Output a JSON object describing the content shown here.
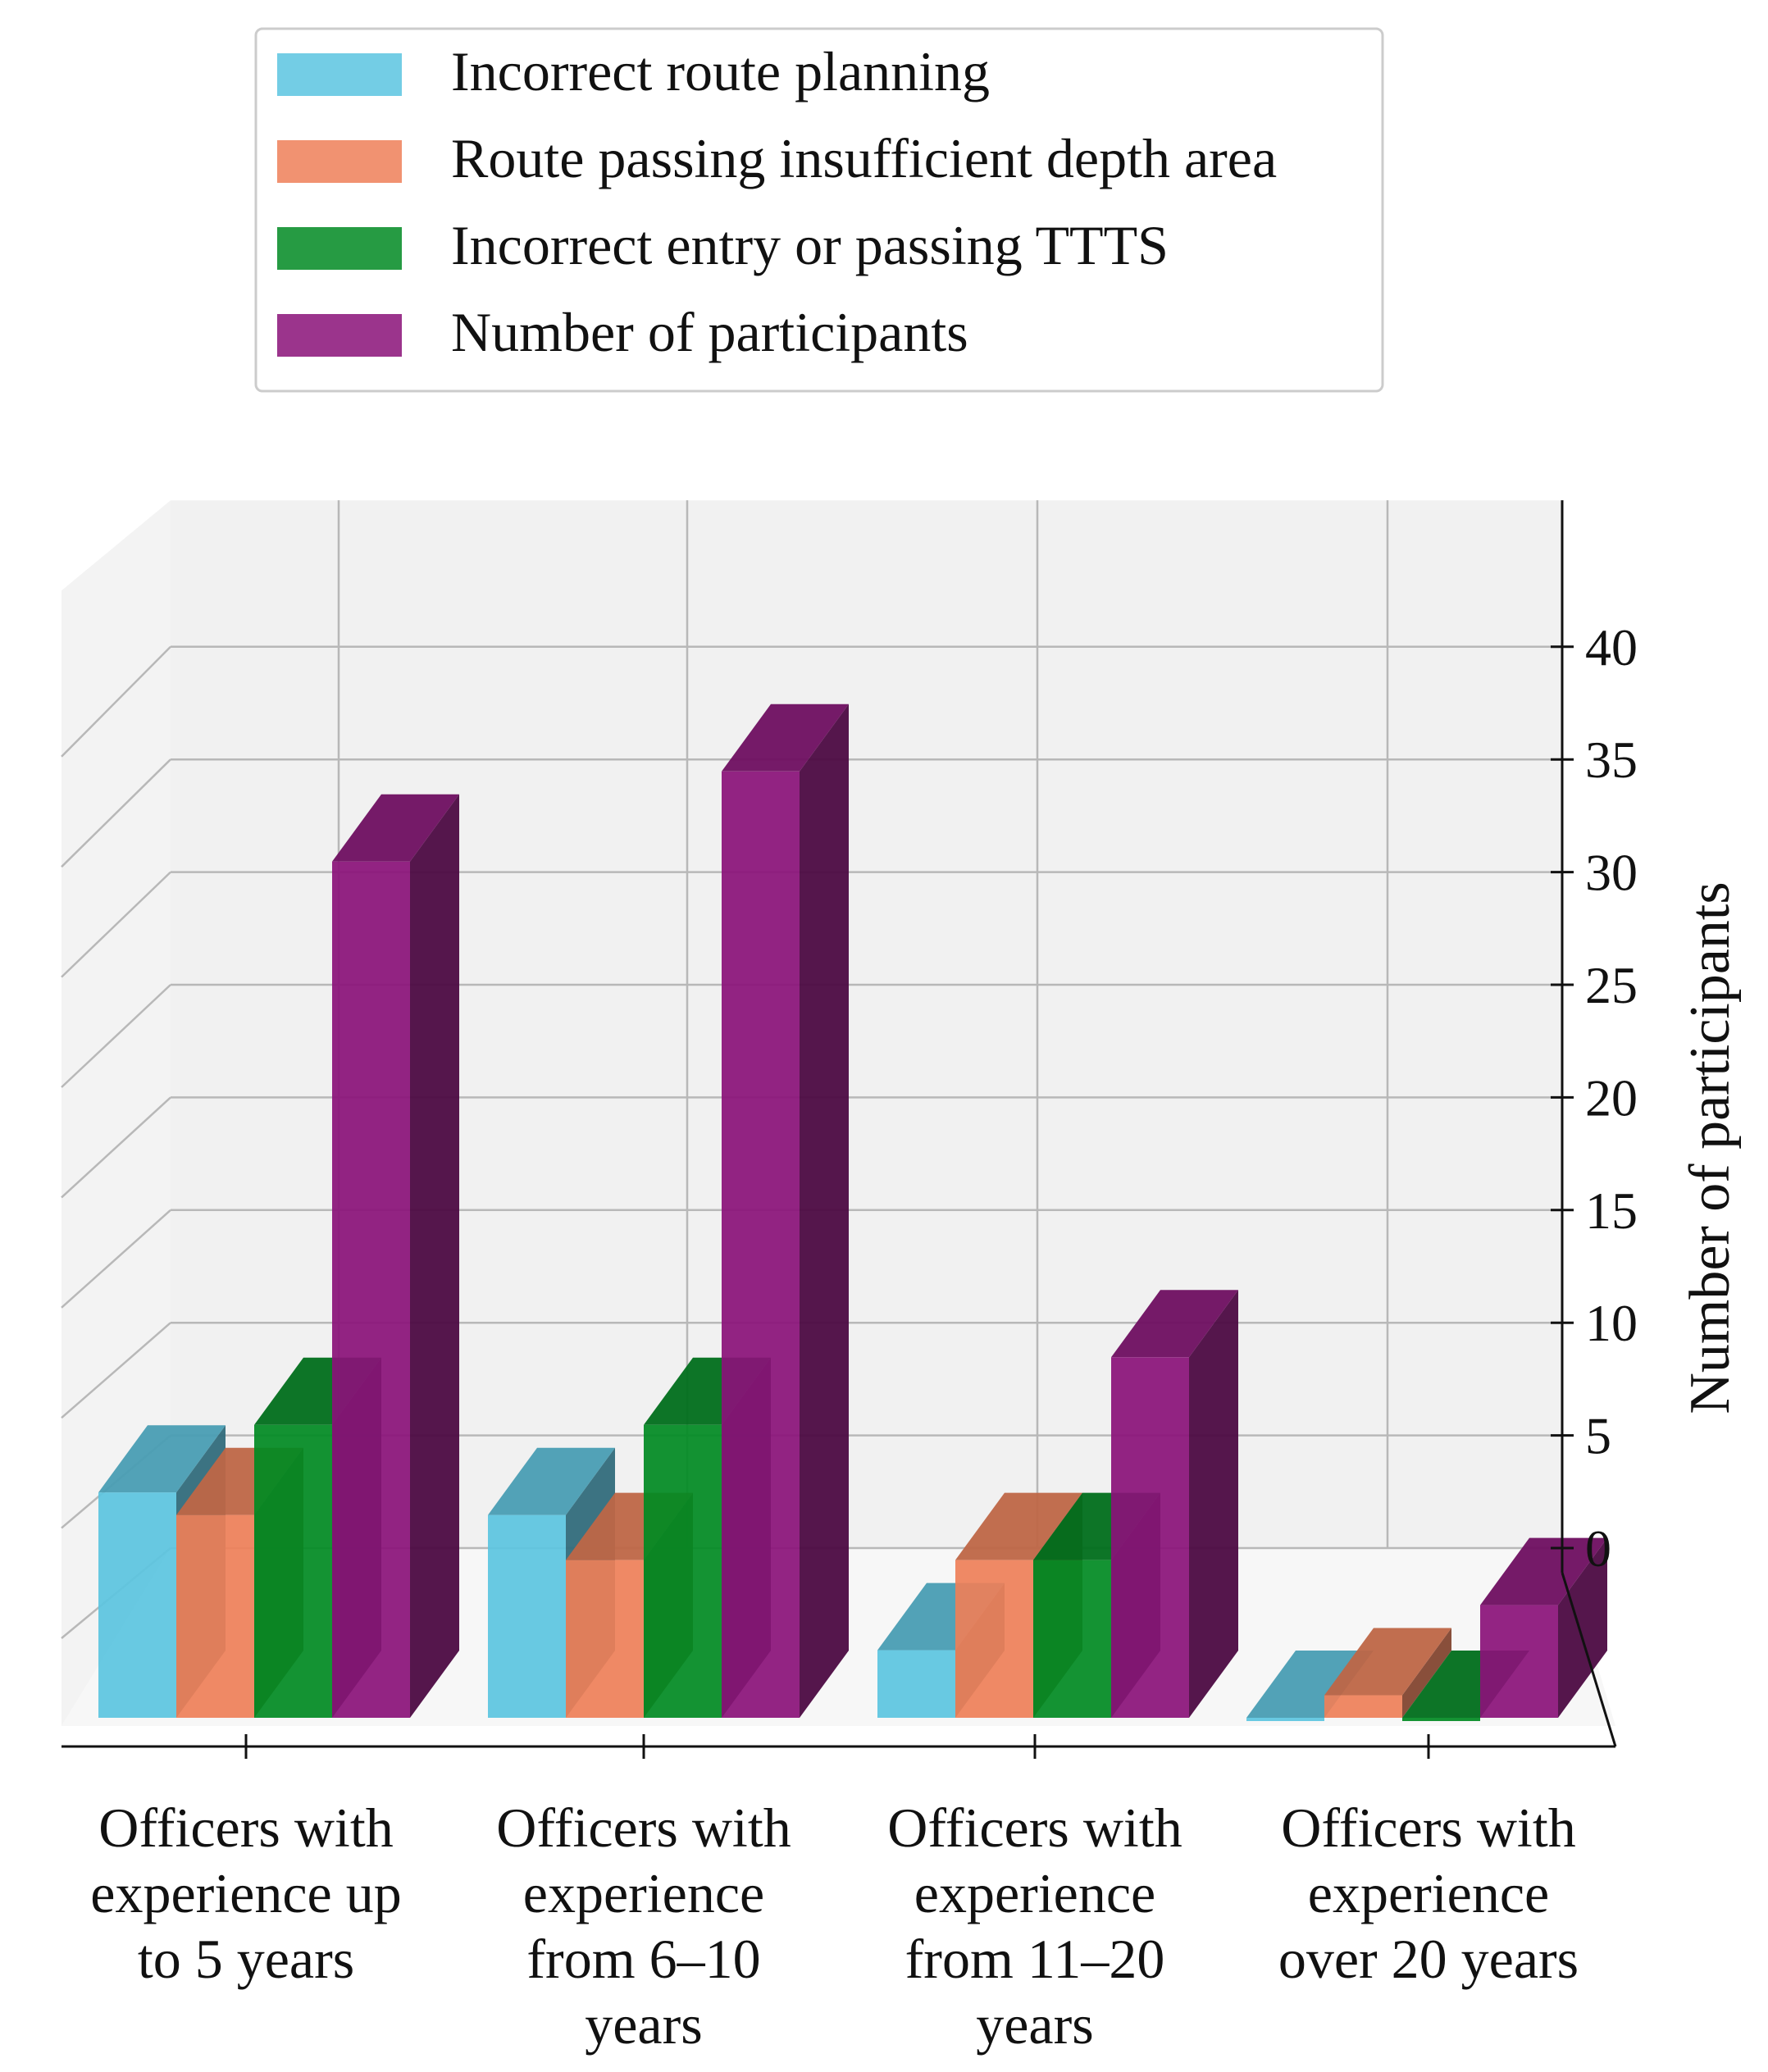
{
  "chart_data": {
    "type": "bar",
    "title": "",
    "ylabel": "Number of participants",
    "xlabel": "",
    "ylim": [
      0,
      45
    ],
    "yticks": [
      0,
      5,
      10,
      15,
      20,
      25,
      30,
      35,
      40
    ],
    "categories": [
      [
        "Officers with",
        "experience up",
        "to 5 years"
      ],
      [
        "Officers with",
        "experience",
        "from 6–10",
        "years"
      ],
      [
        "Officers with",
        "experience",
        "from 11–20",
        "years"
      ],
      [
        "Officers with",
        "experience",
        "over 20 years"
      ]
    ],
    "series": [
      {
        "name": "Incorrect route planning",
        "color": "#5bc4e0",
        "values": [
          10,
          9,
          3,
          0
        ]
      },
      {
        "name": "Route passing insufficient depth area",
        "color": "#ee7f58",
        "values": [
          9,
          7,
          7,
          1
        ]
      },
      {
        "name": "Incorrect entry or passing TTTS",
        "color": "#008a22",
        "values": [
          13,
          13,
          7,
          0
        ]
      },
      {
        "name": "Number of participants",
        "color": "#8a1178",
        "values": [
          38,
          42,
          16,
          5
        ]
      }
    ],
    "legend": {
      "position": "top"
    }
  }
}
